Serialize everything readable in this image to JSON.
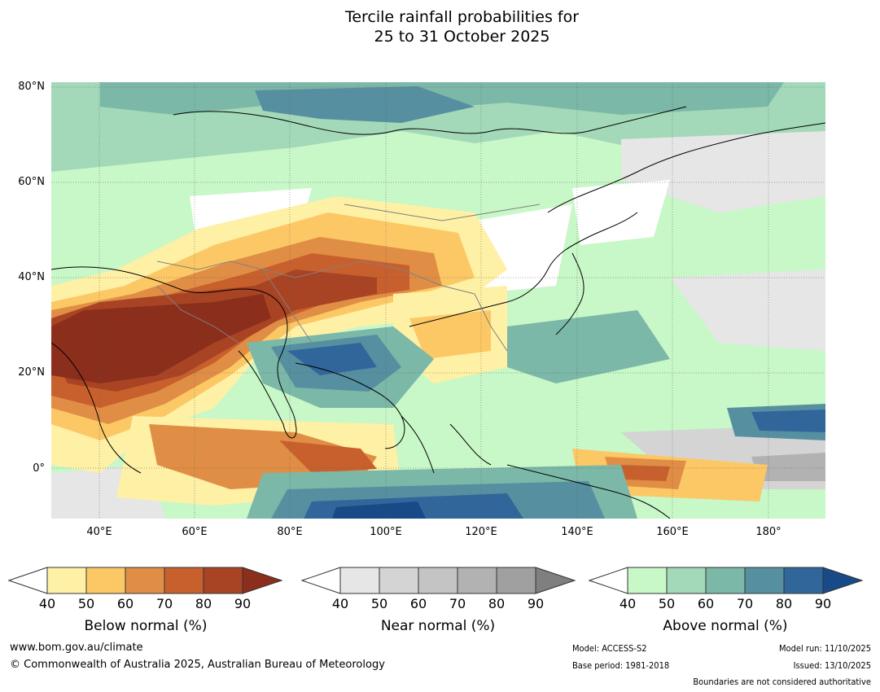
{
  "title": {
    "line1": "Tercile rainfall probabilities for",
    "line2": "25 to 31 October 2025"
  },
  "map": {
    "lat_labels": [
      "80°N",
      "60°N",
      "40°N",
      "20°N",
      "0°"
    ],
    "lon_labels": [
      "40°E",
      "60°E",
      "80°E",
      "100°E",
      "120°E",
      "140°E",
      "160°E",
      "180°"
    ],
    "colors": {
      "land_outline": "#000000",
      "border": "#808080",
      "grid": "#555555"
    }
  },
  "colorbars": [
    {
      "name": "below",
      "title": "Below normal (%)",
      "ticks": [
        "40",
        "50",
        "60",
        "70",
        "80",
        "90"
      ],
      "colors": [
        "#ffffff",
        "#fef0a5",
        "#fcc865",
        "#e08e45",
        "#c8602e",
        "#a84424",
        "#8c2e1c"
      ]
    },
    {
      "name": "near",
      "title": "Near normal (%)",
      "ticks": [
        "40",
        "50",
        "60",
        "70",
        "80",
        "90"
      ],
      "colors": [
        "#ffffff",
        "#e6e6e6",
        "#d4d4d4",
        "#c4c4c4",
        "#b2b2b2",
        "#a0a0a0",
        "#7f7f7f"
      ]
    },
    {
      "name": "above",
      "title": "Above normal (%)",
      "ticks": [
        "40",
        "50",
        "60",
        "70",
        "80",
        "90"
      ],
      "colors": [
        "#ffffff",
        "#c8f7c8",
        "#a3d9b8",
        "#7bb8a8",
        "#5690a0",
        "#31669a",
        "#174a86"
      ]
    }
  ],
  "footer": {
    "website": "www.bom.gov.au/climate",
    "copyright": "© Commonwealth of Australia 2025, Australian Bureau of Meteorology",
    "model": "Model: ACCESS-S2",
    "base_period": "Base period: 1981-2018",
    "model_run": "Model run: 11/10/2025",
    "issued": "Issued: 13/10/2025",
    "boundaries_note": "Boundaries are not considered authoritative"
  }
}
